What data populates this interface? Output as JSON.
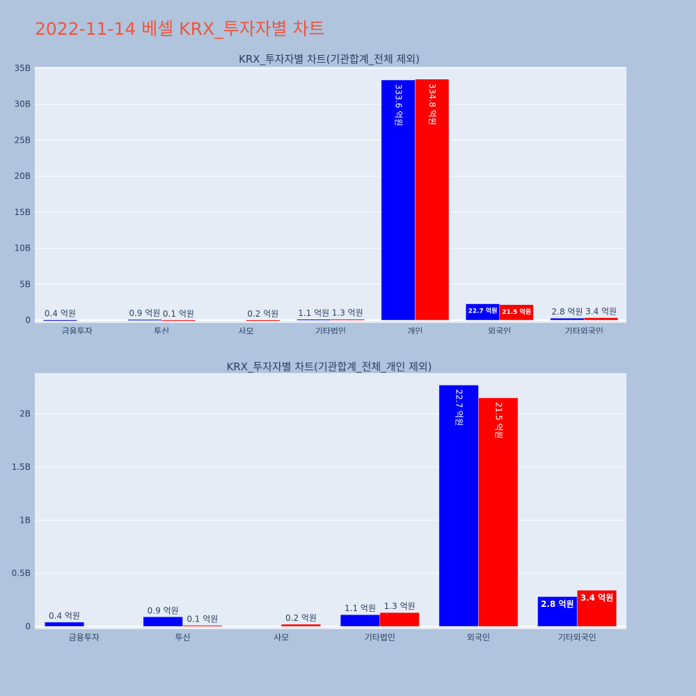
{
  "page": {
    "title": "2022-11-14 베셀 KRX_투자자별 차트"
  },
  "colors": {
    "background": "#b0c4de",
    "plot_background": "#e5ecf6",
    "grid": "#ffffff",
    "title": "#ef553b",
    "series_buy": "#0000ff",
    "series_sell": "#ff0000",
    "text": "#2a3f5f"
  },
  "chart_data": [
    {
      "type": "bar",
      "title": "KRX_투자자별 차트(기관합계_전체 제외)",
      "categories": [
        "금융투자",
        "투신",
        "사모",
        "기타법인",
        "개인",
        "외국인",
        "기타외국인"
      ],
      "ylim": [
        0,
        35000000000
      ],
      "yticks": [
        {
          "value": 0,
          "label": "0"
        },
        {
          "value": 5000000000,
          "label": "5B"
        },
        {
          "value": 10000000000,
          "label": "10B"
        },
        {
          "value": 15000000000,
          "label": "15B"
        },
        {
          "value": 20000000000,
          "label": "20B"
        },
        {
          "value": 25000000000,
          "label": "25B"
        },
        {
          "value": 30000000000,
          "label": "30B"
        },
        {
          "value": 35000000000,
          "label": "35B"
        }
      ],
      "grid": true,
      "series": [
        {
          "color": "#0000ff",
          "values": [
            40000000,
            90000000,
            0,
            110000000,
            33360000000,
            2270000000,
            280000000
          ],
          "labels": [
            "0.4 억원",
            "0.9 억원",
            "",
            "1.1 억원",
            "333.6 억원",
            "22.7 억원",
            "2.8 억원"
          ]
        },
        {
          "color": "#ff0000",
          "values": [
            0,
            10000000,
            20000000,
            130000000,
            33480000000,
            2150000000,
            340000000
          ],
          "labels": [
            "",
            "0.1 억원",
            "0.2 억원",
            "1.3 억원",
            "334.8 억원",
            "21.5 억원",
            "3.4 억원"
          ]
        }
      ]
    },
    {
      "type": "bar",
      "title": "KRX_투자자별 차트(기관합계_전체_개인 제외)",
      "categories": [
        "금융투자",
        "투신",
        "사모",
        "기타법인",
        "외국인",
        "기타외국인"
      ],
      "ylim": [
        0,
        2370000000
      ],
      "yticks": [
        {
          "value": 0,
          "label": "0"
        },
        {
          "value": 500000000,
          "label": "0.5B"
        },
        {
          "value": 1000000000,
          "label": "1B"
        },
        {
          "value": 1500000000,
          "label": "1.5B"
        },
        {
          "value": 2000000000,
          "label": "2B"
        }
      ],
      "grid": true,
      "series": [
        {
          "color": "#0000ff",
          "values": [
            40000000,
            90000000,
            0,
            110000000,
            2270000000,
            280000000
          ],
          "labels": [
            "0.4 억원",
            "0.9 억원",
            "",
            "1.1 억원",
            "22.7 억원",
            "2.8 억원"
          ]
        },
        {
          "color": "#ff0000",
          "values": [
            0,
            10000000,
            20000000,
            130000000,
            2150000000,
            340000000
          ],
          "labels": [
            "",
            "0.1 억원",
            "0.2 억원",
            "1.3 억원",
            "21.5 억원",
            "3.4 억원"
          ]
        }
      ]
    }
  ]
}
